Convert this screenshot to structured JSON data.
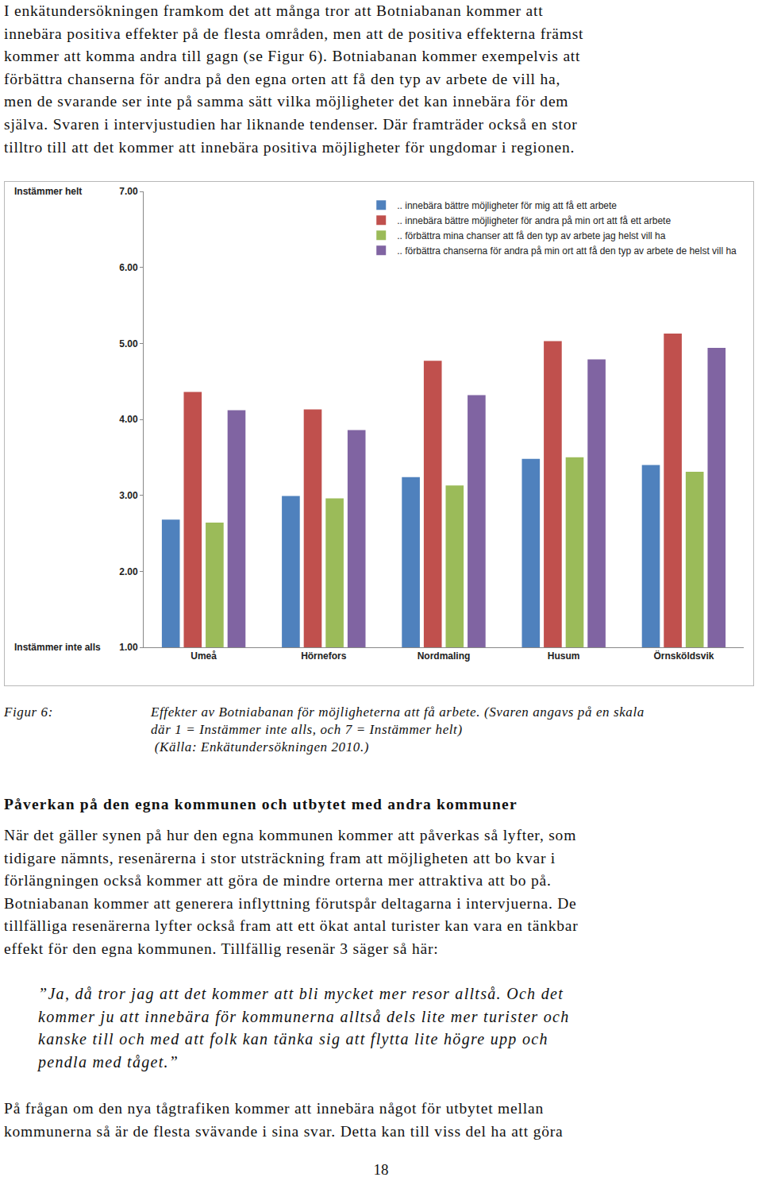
{
  "paragraph_1": [
    "I enkätundersökningen framkom det att många tror att Botniabanan kommer att",
    "innebära positiva effekter på de flesta områden, men att de positiva effekterna främst",
    "kommer att komma andra till gagn (se Figur 6). Botniabanan kommer exempelvis att",
    "förbättra chanserna för andra på den egna orten att få den typ av arbete de vill ha,",
    "men de svarande ser inte på samma sätt vilka möjligheter det kan innebära för dem",
    "själva. Svaren i intervjustudien har liknande tendenser. Där framträder också en stor",
    "tilltro till att det kommer att innebära positiva möjligheter för ungdomar i regionen."
  ],
  "chart_data": {
    "type": "bar",
    "categories": [
      "Umeå",
      "Hörnefors",
      "Nordmaling",
      "Husum",
      "Örnsköldsvik"
    ],
    "series": [
      {
        "name": ".. innebära bättre möjligheter för mig att få ett arbete",
        "color": "#4f81bd",
        "values": [
          2.68,
          2.99,
          3.24,
          3.48,
          3.4
        ]
      },
      {
        "name": ".. innebära bättre möjligheter för andra på min ort att få ett arbete",
        "color": "#c0504d",
        "values": [
          4.36,
          4.13,
          4.77,
          5.03,
          5.13
        ]
      },
      {
        "name": ".. förbättra mina chanser att få den typ av arbete jag helst vill ha",
        "color": "#9bbb59",
        "values": [
          2.64,
          2.96,
          3.13,
          3.5,
          3.31
        ]
      },
      {
        "name": ".. förbättra chanserna för andra på min ort att få den typ av arbete de helst vill ha",
        "color": "#8064a2",
        "values": [
          4.12,
          3.86,
          4.32,
          4.79,
          4.94
        ]
      }
    ],
    "ylim": [
      1,
      7
    ],
    "yticks": [
      {
        "value": 1,
        "label": "1.00"
      },
      {
        "value": 2,
        "label": "2.00"
      },
      {
        "value": 3,
        "label": "3.00"
      },
      {
        "value": 4,
        "label": "4.00"
      },
      {
        "value": 5,
        "label": "5.00"
      },
      {
        "value": 6,
        "label": "6.00"
      },
      {
        "value": 7,
        "label": "7.00"
      }
    ],
    "annotations": [
      {
        "text": "Instämmer helt",
        "y": 7
      },
      {
        "text": "Instämmer inte alls",
        "y": 1
      }
    ],
    "grid": false,
    "legend": "upper right"
  },
  "caption": {
    "label": "Figur 6:",
    "lines": [
      "Effekter av Botniabanan för möjligheterna att få arbete. (Svaren angavs på en skala",
      "där 1 = Instämmer inte alls, och 7 = Instämmer helt)",
      " (Källa: Enkätundersökningen 2010.)"
    ]
  },
  "heading": "Påverkan på den egna kommunen och utbytet med andra kommuner",
  "paragraph_2": [
    "När det gäller synen på hur den egna kommunen kommer att påverkas så lyfter, som",
    "tidigare nämnts, resenärerna i stor utsträckning fram att möjligheten att bo kvar i",
    "förlängningen också kommer att göra de mindre orterna mer attraktiva att bo på.",
    "Botniabanan kommer att generera inflyttning förutspår deltagarna i intervjuerna. De",
    "tillfälliga resenärerna lyfter också fram att ett ökat antal turister kan vara en tänkbar",
    "effekt för den egna kommunen. Tillfällig resenär 3 säger så här:"
  ],
  "quote": [
    "”Ja, då tror jag att det kommer att bli mycket mer resor alltså. Och det",
    "kommer ju att innebära för kommunerna alltså dels lite mer turister och",
    "kanske till och med att folk kan tänka sig att flytta lite högre upp och",
    "pendla med tåget.”"
  ],
  "paragraph_3": [
    "På frågan om den nya tågtrafiken kommer att innebära något för utbytet mellan",
    "kommunerna så är de flesta svävande i sina svar. Detta kan till viss del ha att göra"
  ],
  "page_number": "18"
}
